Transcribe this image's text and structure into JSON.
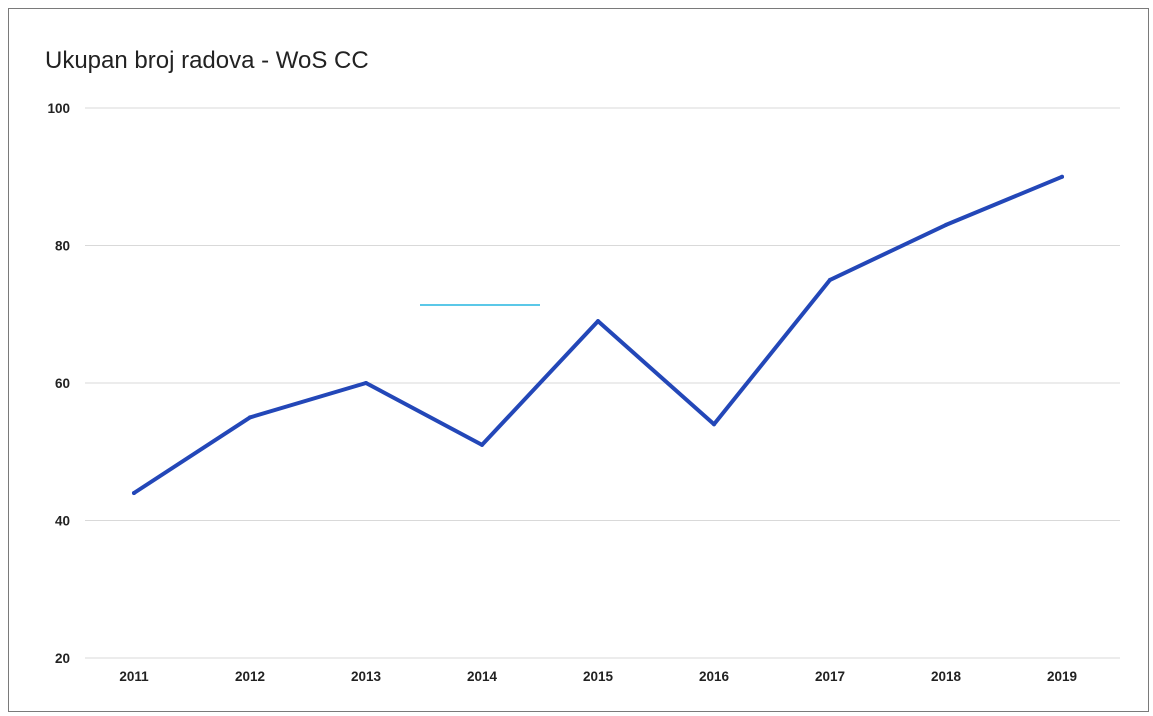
{
  "chart_data": {
    "type": "line",
    "title": "Ukupan broj radova - WoS CC",
    "xlabel": "",
    "ylabel": "",
    "categories": [
      "2011",
      "2012",
      "2013",
      "2014",
      "2015",
      "2016",
      "2017",
      "2018",
      "2019"
    ],
    "series": [
      {
        "values": [
          44,
          55,
          60,
          51,
          69,
          54,
          75,
          83,
          90
        ],
        "color": "#2347b8"
      }
    ],
    "ylim": [
      20,
      100
    ],
    "yticks": [
      "20",
      "40",
      "60",
      "80",
      "100"
    ],
    "grid": true,
    "legend": "none",
    "colors": {
      "line": "#2347b8",
      "grid": "#d9d9d9",
      "legend_swatch": "#5bc8e8"
    }
  }
}
